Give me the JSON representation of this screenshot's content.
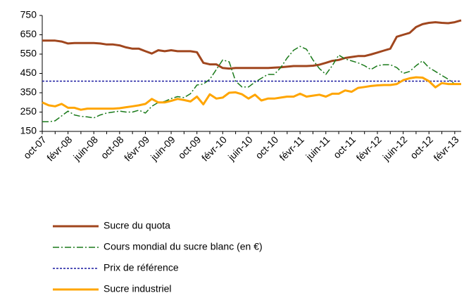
{
  "chart_data": {
    "type": "line",
    "categories": [
      "oct-07",
      null,
      null,
      null,
      "févr-08",
      null,
      null,
      null,
      "juin-08",
      null,
      null,
      null,
      "oct-08",
      null,
      null,
      null,
      "févr-09",
      null,
      null,
      null,
      "juin-09",
      null,
      null,
      null,
      "oct-09",
      null,
      null,
      null,
      "févr-10",
      null,
      null,
      null,
      "juin-10",
      null,
      null,
      null,
      "oct-10",
      null,
      null,
      null,
      "févr-11",
      null,
      null,
      null,
      "juin-11",
      null,
      null,
      null,
      "oct-11",
      null,
      null,
      null,
      "févr-12",
      null,
      null,
      null,
      "juin-12",
      null,
      null,
      null,
      "oct-12",
      null,
      null,
      null,
      "févr-13",
      null
    ],
    "ylim": [
      150,
      750
    ],
    "yticks": [
      150,
      250,
      350,
      450,
      550,
      650,
      750
    ],
    "grid": false,
    "series": [
      {
        "name": "Sucre du quota",
        "color": "#a0461e",
        "dash": "solid",
        "width": 3,
        "values": [
          620,
          620,
          620,
          615,
          605,
          607,
          607,
          607,
          607,
          605,
          600,
          600,
          595,
          585,
          578,
          578,
          565,
          553,
          570,
          565,
          570,
          565,
          565,
          565,
          560,
          505,
          497,
          497,
          478,
          475,
          478,
          478,
          478,
          478,
          478,
          478,
          480,
          482,
          485,
          488,
          488,
          488,
          490,
          495,
          505,
          515,
          520,
          530,
          535,
          540,
          540,
          548,
          558,
          568,
          578,
          640,
          650,
          660,
          690,
          705,
          712,
          715,
          712,
          710,
          715,
          725
        ]
      },
      {
        "name": "Cours mondial du sucre blanc (en €)",
        "color": "#1a7a1a",
        "dash": "dash-dot",
        "width": 1.5,
        "values": [
          200,
          200,
          205,
          230,
          255,
          235,
          228,
          225,
          220,
          235,
          245,
          250,
          255,
          250,
          250,
          260,
          245,
          280,
          300,
          305,
          320,
          330,
          325,
          345,
          390,
          395,
          420,
          470,
          520,
          510,
          410,
          380,
          380,
          405,
          425,
          445,
          445,
          480,
          530,
          570,
          590,
          575,
          520,
          475,
          445,
          490,
          545,
          525,
          515,
          505,
          490,
          470,
          490,
          495,
          495,
          480,
          450,
          460,
          490,
          515,
          480,
          460,
          440,
          420,
          395,
          null
        ]
      },
      {
        "name": "Prix de référence",
        "color": "#1a1aa0",
        "dash": "dotted",
        "width": 1.5,
        "values": [
          410,
          410,
          410,
          410,
          410,
          410,
          410,
          410,
          410,
          410,
          410,
          410,
          410,
          410,
          410,
          410,
          410,
          410,
          410,
          410,
          410,
          410,
          410,
          410,
          410,
          410,
          410,
          410,
          410,
          410,
          410,
          410,
          410,
          410,
          410,
          410,
          410,
          410,
          410,
          410,
          410,
          410,
          410,
          410,
          410,
          410,
          410,
          410,
          410,
          410,
          410,
          410,
          410,
          410,
          410,
          410,
          410,
          410,
          410,
          410,
          410,
          410,
          410,
          410,
          410,
          410
        ]
      },
      {
        "name": "Sucre industriel",
        "color": "#ffa500",
        "dash": "solid",
        "width": 3,
        "values": [
          300,
          285,
          280,
          292,
          272,
          272,
          262,
          268,
          268,
          268,
          268,
          268,
          270,
          275,
          280,
          285,
          292,
          318,
          300,
          300,
          308,
          318,
          312,
          305,
          330,
          290,
          342,
          320,
          325,
          350,
          352,
          342,
          320,
          340,
          310,
          320,
          320,
          325,
          330,
          330,
          345,
          330,
          335,
          340,
          330,
          345,
          345,
          362,
          355,
          375,
          380,
          385,
          388,
          390,
          390,
          395,
          415,
          425,
          430,
          428,
          410,
          378,
          400,
          395,
          395,
          395
        ]
      }
    ]
  }
}
